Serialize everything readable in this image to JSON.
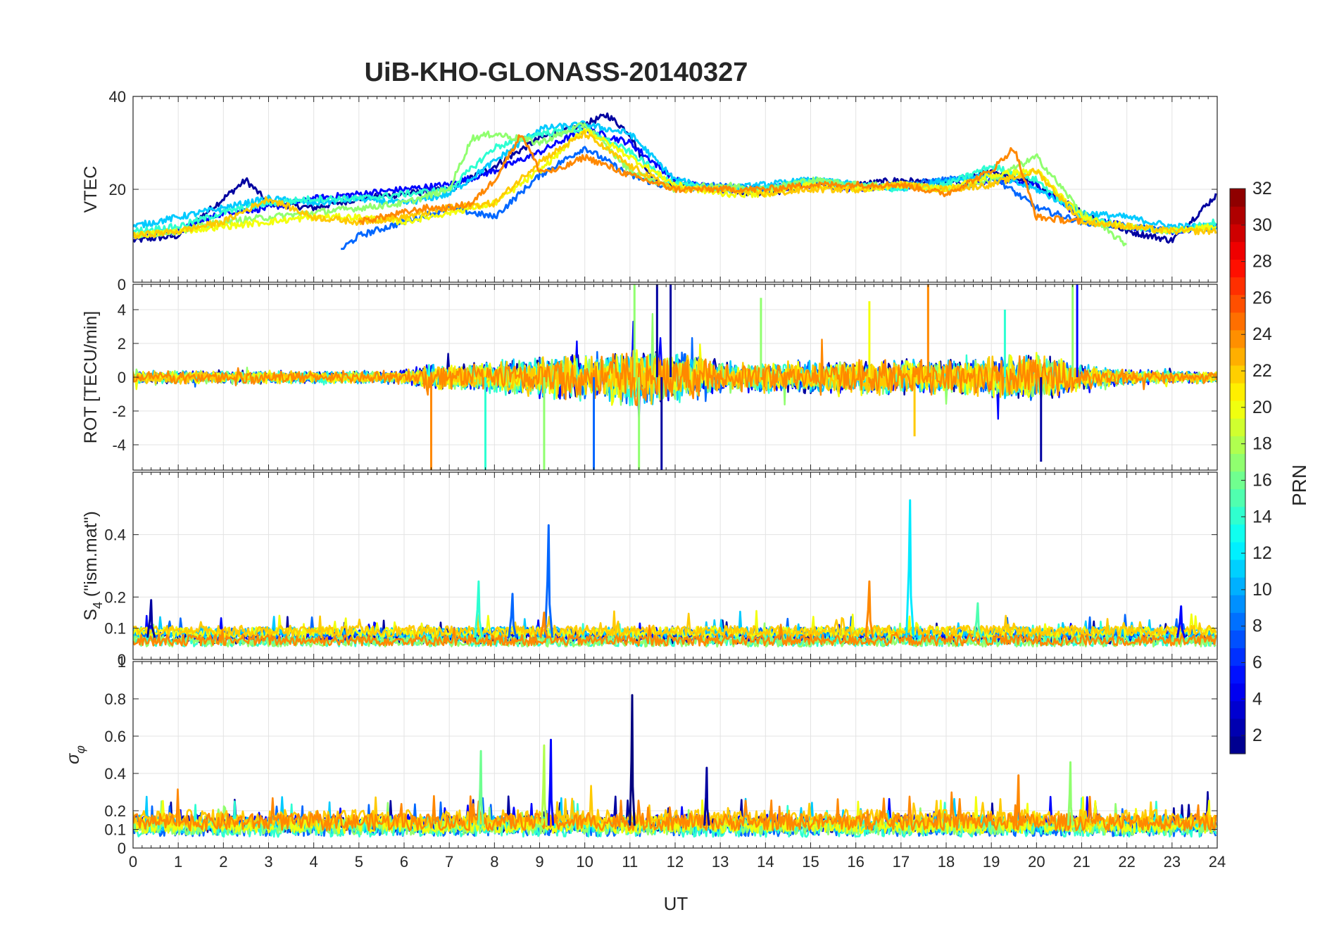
{
  "figure": {
    "title": "UiB-KHO-GLONASS-20140327",
    "xlabel": "UT",
    "x_ticks": [
      0,
      1,
      2,
      3,
      4,
      5,
      6,
      7,
      8,
      9,
      10,
      11,
      12,
      13,
      14,
      15,
      16,
      17,
      18,
      19,
      20,
      21,
      22,
      23,
      24
    ]
  },
  "colorbar": {
    "label": "PRN",
    "range": [
      1,
      32
    ],
    "ticks": [
      2,
      4,
      6,
      8,
      10,
      12,
      14,
      16,
      18,
      20,
      22,
      24,
      26,
      28,
      30,
      32
    ],
    "colormap": "jet",
    "colors": [
      "#00008f",
      "#0000ff",
      "#0080ff",
      "#00ffff",
      "#80ff80",
      "#ffff00",
      "#ff8000",
      "#ff0000",
      "#800000"
    ]
  },
  "chart_data": [
    {
      "type": "line",
      "panel": "vtec",
      "ylabel": "VTEC",
      "xlim": [
        0,
        24
      ],
      "ylim": [
        0,
        40
      ],
      "y_ticks": [
        0,
        20,
        40
      ],
      "y_tick_labels": [
        "",
        "20",
        "40"
      ],
      "grid": true,
      "series": [
        {
          "prn": 2,
          "x": [
            0,
            1,
            2,
            2.5,
            3,
            4,
            5,
            6,
            7,
            8,
            9,
            10,
            10.5,
            11,
            11.5,
            12,
            13,
            14,
            15,
            16,
            17,
            18,
            19,
            20,
            21,
            22,
            23,
            24
          ],
          "y": [
            9,
            10,
            18,
            22,
            17,
            16,
            18,
            19,
            20,
            25,
            31,
            34,
            36,
            32,
            22,
            21,
            20,
            19,
            21,
            21,
            22,
            21,
            24,
            21,
            15,
            11,
            9,
            19
          ]
        },
        {
          "prn": 5,
          "x": [
            0,
            1,
            2,
            3,
            4,
            5,
            6,
            7,
            8,
            9,
            10,
            11,
            12,
            13,
            14,
            15,
            16,
            17,
            18,
            19,
            20,
            21,
            22,
            23,
            24
          ],
          "y": [
            10,
            11,
            15,
            16,
            18,
            19,
            20,
            21,
            24,
            28,
            33,
            30,
            22,
            20,
            20,
            21,
            20,
            21,
            20,
            22,
            21,
            14,
            12,
            11,
            12
          ]
        },
        {
          "prn": 8,
          "x": [
            4.6,
            5,
            6,
            7,
            8,
            9,
            10,
            11,
            12,
            13,
            14,
            15,
            16,
            17,
            18,
            19,
            20,
            21,
            22,
            23,
            24
          ],
          "y": [
            7,
            10,
            13,
            16,
            14,
            23,
            29,
            23,
            20,
            21,
            20,
            22,
            21,
            21,
            22,
            23,
            16,
            13,
            12,
            11,
            12
          ]
        },
        {
          "prn": 11,
          "x": [
            0,
            1,
            2,
            3,
            4,
            5,
            6,
            7,
            8,
            9,
            10,
            11,
            12,
            13,
            14,
            15,
            16,
            17,
            18,
            19,
            20,
            21,
            22,
            23,
            24
          ],
          "y": [
            12,
            14,
            16,
            18,
            17,
            18,
            17,
            19,
            26,
            33,
            34,
            32,
            22,
            20,
            21,
            22,
            21,
            20,
            22,
            23,
            20,
            15,
            14,
            12,
            12
          ]
        },
        {
          "prn": 14,
          "x": [
            0,
            1,
            2,
            3,
            4,
            5,
            6,
            7,
            8,
            9,
            10,
            11,
            12,
            13,
            14,
            15,
            16,
            17,
            18,
            19,
            20,
            21,
            22,
            23,
            24
          ],
          "y": [
            11,
            12,
            15,
            17,
            18,
            18,
            19,
            20,
            29,
            32,
            33,
            28,
            21,
            20,
            20,
            22,
            21,
            20,
            21,
            25,
            22,
            14,
            12,
            11,
            13
          ]
        },
        {
          "prn": 17,
          "x": [
            0,
            1,
            2,
            3,
            4,
            5,
            6,
            7,
            7.5,
            8,
            9,
            10,
            11,
            12,
            13,
            14,
            15,
            16,
            17,
            18,
            19,
            20,
            21,
            22
          ],
          "y": [
            10,
            11,
            13,
            14,
            15,
            16,
            17,
            20,
            31,
            32,
            30,
            34,
            24,
            20,
            21,
            20,
            22,
            21,
            21,
            20,
            22,
            27,
            15,
            8
          ]
        },
        {
          "prn": 20,
          "x": [
            0,
            1,
            2,
            3,
            4,
            5,
            6,
            7,
            8,
            9,
            10,
            11,
            12,
            13,
            14,
            15,
            16,
            17,
            18,
            19,
            20,
            21,
            22,
            23,
            24
          ],
          "y": [
            10,
            11,
            12,
            13,
            14,
            14,
            13,
            15,
            17,
            24,
            33,
            27,
            21,
            19,
            19,
            21,
            20,
            21,
            20,
            23,
            24,
            14,
            12,
            11,
            12
          ]
        },
        {
          "prn": 22,
          "x": [
            0,
            1,
            2,
            3,
            4,
            5,
            6,
            7,
            8,
            9,
            10,
            11,
            12,
            13,
            14,
            15,
            16,
            17,
            18,
            19,
            20,
            21,
            22,
            23,
            24
          ],
          "y": [
            10,
            11,
            13,
            18,
            14,
            13,
            14,
            16,
            17,
            26,
            32,
            25,
            20,
            20,
            19,
            20,
            20,
            21,
            20,
            21,
            24,
            13,
            12,
            11,
            11
          ]
        },
        {
          "prn": 24,
          "x": [
            5,
            6,
            6.5,
            7,
            7.5,
            8,
            8.6,
            9,
            9.4,
            10,
            11,
            12,
            13,
            14,
            15,
            16,
            17,
            18,
            19,
            19.5,
            20,
            21
          ],
          "y": [
            13,
            15,
            16,
            16,
            17,
            22,
            32,
            24,
            24,
            27,
            23,
            20,
            20,
            20,
            21,
            21,
            21,
            19,
            24,
            29,
            14,
            13
          ]
        }
      ]
    },
    {
      "type": "line",
      "panel": "rot",
      "ylabel": "ROT [TECU/min]",
      "xlim": [
        0,
        24
      ],
      "ylim": [
        -5.5,
        5.5
      ],
      "y_ticks": [
        -4,
        -2,
        0,
        2,
        4
      ],
      "y_top_label": "0",
      "grid": true,
      "activity_profile": {
        "x": [
          0,
          2,
          4,
          6,
          6.5,
          7,
          8,
          9,
          10,
          11,
          11.5,
          12,
          12.5,
          13,
          14,
          15,
          16,
          17,
          18,
          19,
          20,
          20.5,
          21,
          22,
          23,
          24
        ],
        "amplitude": [
          1.0,
          1.1,
          1.0,
          1.1,
          2.0,
          2.2,
          2.6,
          3.2,
          3.8,
          4.6,
          5.0,
          4.0,
          3.5,
          2.5,
          2.4,
          2.8,
          2.6,
          3.0,
          2.8,
          3.2,
          3.8,
          3.2,
          2.0,
          1.2,
          1.0,
          1.0
        ]
      },
      "spikes": [
        {
          "prn": 24,
          "x": 6.6,
          "y": -5.5
        },
        {
          "prn": 14,
          "x": 7.8,
          "y": -5.5
        },
        {
          "prn": 17,
          "x": 9.1,
          "y": -5.5
        },
        {
          "prn": 8,
          "x": 10.2,
          "y": -5.5
        },
        {
          "prn": 17,
          "x": 11.1,
          "y": 5.5
        },
        {
          "prn": 17,
          "x": 11.2,
          "y": -5.5
        },
        {
          "prn": 2,
          "x": 11.6,
          "y": 5.5
        },
        {
          "prn": 2,
          "x": 11.7,
          "y": -5.5
        },
        {
          "prn": 2,
          "x": 11.9,
          "y": 5.5
        },
        {
          "prn": 17,
          "x": 13.9,
          "y": 4.7
        },
        {
          "prn": 20,
          "x": 16.3,
          "y": 4.5
        },
        {
          "prn": 24,
          "x": 17.6,
          "y": 5.5
        },
        {
          "prn": 22,
          "x": 17.3,
          "y": -3.5
        },
        {
          "prn": 14,
          "x": 19.3,
          "y": 4.0
        },
        {
          "prn": 2,
          "x": 20.1,
          "y": -5.0
        },
        {
          "prn": 17,
          "x": 20.8,
          "y": 5.5
        },
        {
          "prn": 5,
          "x": 20.9,
          "y": 5.5
        }
      ]
    },
    {
      "type": "line",
      "panel": "s4",
      "ylabel": "S4 (\"ism.mat\")",
      "ylabel_main": "S",
      "ylabel_sub": "4",
      "ylabel_rest": " (\"ism.mat\")",
      "xlim": [
        0,
        24
      ],
      "ylim": [
        0,
        0.6
      ],
      "y_ticks": [
        0,
        0.1,
        0.2,
        0.4
      ],
      "y_tick_labels": [
        "0",
        "0.1",
        "0.2",
        "0.4"
      ],
      "baseline_level": 0.07,
      "spikes": [
        {
          "prn": 2,
          "x": 0.4,
          "y": 0.19
        },
        {
          "prn": 14,
          "x": 7.65,
          "y": 0.25
        },
        {
          "prn": 8,
          "x": 8.4,
          "y": 0.21
        },
        {
          "prn": 8,
          "x": 9.2,
          "y": 0.43
        },
        {
          "prn": 24,
          "x": 9.1,
          "y": 0.15
        },
        {
          "prn": 24,
          "x": 16.3,
          "y": 0.25
        },
        {
          "prn": 12,
          "x": 17.2,
          "y": 0.51
        },
        {
          "prn": 15,
          "x": 18.7,
          "y": 0.18
        },
        {
          "prn": 5,
          "x": 23.2,
          "y": 0.17
        }
      ]
    },
    {
      "type": "line",
      "panel": "sigma_phi",
      "ylabel": "σ_φ",
      "ylabel_main": "σ",
      "ylabel_sub": "φ",
      "xlim": [
        0,
        24
      ],
      "ylim": [
        0,
        1
      ],
      "y_ticks": [
        0,
        0.1,
        0.2,
        0.4,
        0.6,
        0.8
      ],
      "y_tick_labels": [
        "0",
        "0.1",
        "0.2",
        "0.4",
        "0.6",
        "0.8"
      ],
      "y_top_label": "1",
      "baseline_level": 0.12,
      "spikes": [
        {
          "prn": 16,
          "x": 7.7,
          "y": 0.52
        },
        {
          "prn": 18,
          "x": 9.1,
          "y": 0.55
        },
        {
          "prn": 5,
          "x": 9.25,
          "y": 0.58
        },
        {
          "prn": 1,
          "x": 11.05,
          "y": 0.82
        },
        {
          "prn": 2,
          "x": 12.7,
          "y": 0.43
        },
        {
          "prn": 24,
          "x": 19.6,
          "y": 0.39
        },
        {
          "prn": 17,
          "x": 20.75,
          "y": 0.46
        }
      ]
    }
  ]
}
